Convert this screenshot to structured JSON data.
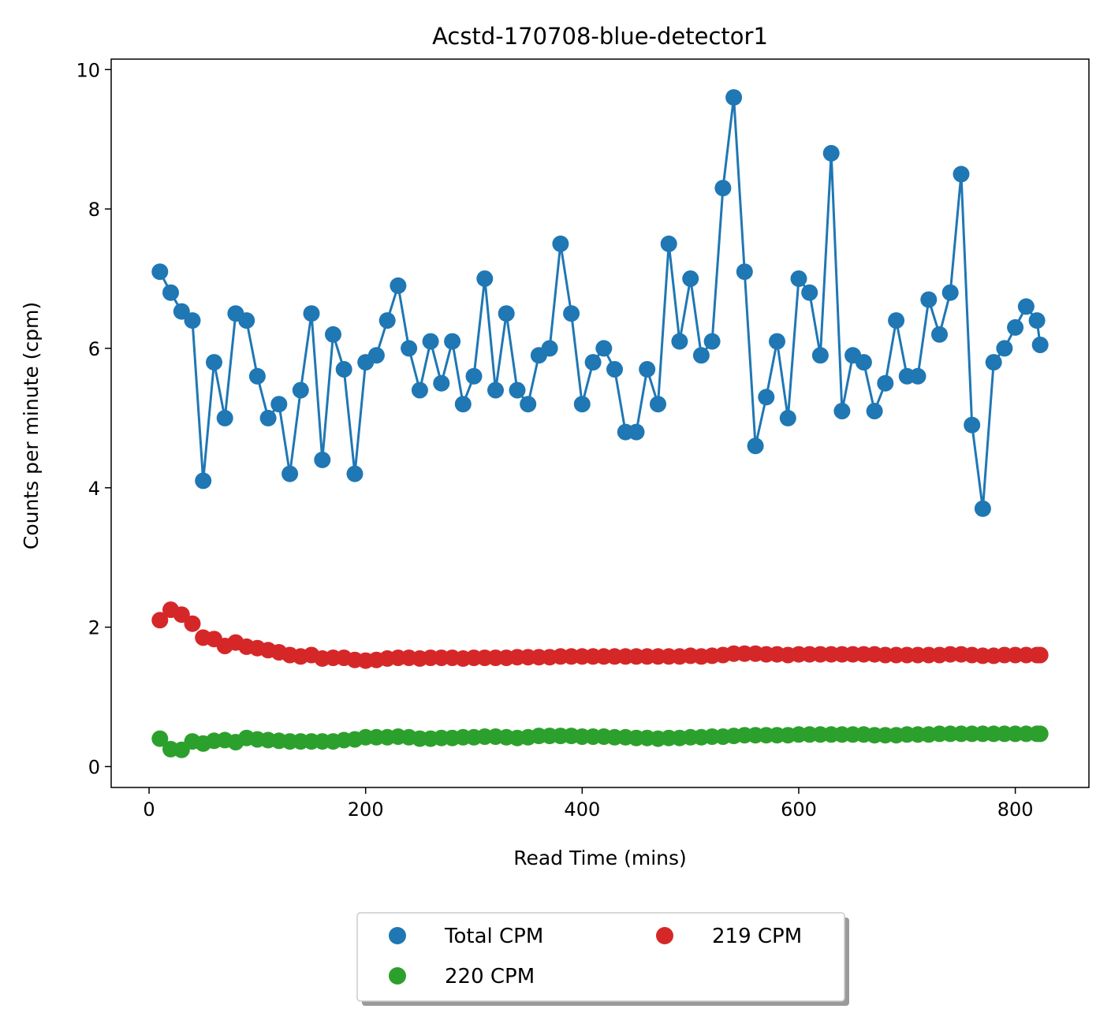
{
  "chart_data": {
    "type": "line",
    "title": "Acstd-170708-blue-detector1",
    "xlabel": "Read Time (mins)",
    "ylabel": "Counts per minute (cpm)",
    "xlim": [
      -35,
      868
    ],
    "ylim": [
      -0.3,
      10.15
    ],
    "xticks": [
      0,
      200,
      400,
      600,
      800
    ],
    "yticks": [
      0,
      2,
      4,
      6,
      8,
      10
    ],
    "grid": false,
    "legend_position": "below-center",
    "legend_columns": 2,
    "x": [
      10,
      20,
      30,
      40,
      50,
      60,
      70,
      80,
      90,
      100,
      110,
      120,
      130,
      140,
      150,
      160,
      170,
      180,
      190,
      200,
      210,
      220,
      230,
      240,
      250,
      260,
      270,
      280,
      290,
      300,
      310,
      320,
      330,
      340,
      350,
      360,
      370,
      380,
      390,
      400,
      410,
      420,
      430,
      440,
      450,
      460,
      470,
      480,
      490,
      500,
      510,
      520,
      530,
      540,
      550,
      560,
      570,
      580,
      590,
      600,
      610,
      620,
      630,
      640,
      650,
      660,
      670,
      680,
      690,
      700,
      710,
      720,
      730,
      740,
      750,
      760,
      770,
      780,
      790,
      800,
      810,
      820,
      823
    ],
    "series": [
      {
        "name": "Total CPM",
        "color": "#1f77b4",
        "line": true,
        "values": [
          7.1,
          6.8,
          6.53,
          6.4,
          4.1,
          5.8,
          5.0,
          6.5,
          6.4,
          5.6,
          5.0,
          5.2,
          4.2,
          5.4,
          6.5,
          4.4,
          6.2,
          5.7,
          4.2,
          5.8,
          5.9,
          6.4,
          6.9,
          6.0,
          5.4,
          6.1,
          5.5,
          6.1,
          5.2,
          5.6,
          7.0,
          5.4,
          6.5,
          5.4,
          5.2,
          5.9,
          6.0,
          7.5,
          6.5,
          5.2,
          5.8,
          6.0,
          5.7,
          4.8,
          4.8,
          5.7,
          5.2,
          7.5,
          6.1,
          7.0,
          5.9,
          6.1,
          8.3,
          9.6,
          7.1,
          4.6,
          5.3,
          6.1,
          5.0,
          7.0,
          6.8,
          5.9,
          8.8,
          5.1,
          5.9,
          5.8,
          5.1,
          5.5,
          6.4,
          5.6,
          5.6,
          6.7,
          6.2,
          6.8,
          8.5,
          4.9,
          3.7,
          5.8,
          6.0,
          6.3,
          6.6,
          6.4,
          6.05
        ]
      },
      {
        "name": "220 CPM",
        "color": "#2ca02c",
        "line": false,
        "values": [
          0.4,
          0.25,
          0.24,
          0.36,
          0.33,
          0.37,
          0.38,
          0.35,
          0.41,
          0.39,
          0.38,
          0.37,
          0.36,
          0.36,
          0.36,
          0.36,
          0.36,
          0.38,
          0.39,
          0.42,
          0.42,
          0.42,
          0.43,
          0.42,
          0.4,
          0.4,
          0.41,
          0.41,
          0.42,
          0.42,
          0.43,
          0.43,
          0.42,
          0.41,
          0.42,
          0.44,
          0.44,
          0.44,
          0.44,
          0.43,
          0.43,
          0.43,
          0.42,
          0.42,
          0.41,
          0.41,
          0.4,
          0.41,
          0.41,
          0.42,
          0.42,
          0.43,
          0.43,
          0.44,
          0.45,
          0.45,
          0.45,
          0.45,
          0.45,
          0.46,
          0.46,
          0.46,
          0.46,
          0.46,
          0.46,
          0.46,
          0.45,
          0.45,
          0.45,
          0.46,
          0.46,
          0.46,
          0.47,
          0.47,
          0.47,
          0.47,
          0.47,
          0.47,
          0.47,
          0.47,
          0.47,
          0.47,
          0.47
        ]
      },
      {
        "name": "219 CPM",
        "color": "#d62728",
        "line": false,
        "values": [
          2.1,
          2.25,
          2.18,
          2.05,
          1.85,
          1.83,
          1.73,
          1.78,
          1.72,
          1.7,
          1.67,
          1.64,
          1.6,
          1.58,
          1.6,
          1.55,
          1.56,
          1.56,
          1.53,
          1.52,
          1.53,
          1.55,
          1.56,
          1.56,
          1.55,
          1.56,
          1.56,
          1.56,
          1.55,
          1.56,
          1.56,
          1.56,
          1.56,
          1.57,
          1.57,
          1.57,
          1.57,
          1.58,
          1.58,
          1.58,
          1.58,
          1.58,
          1.58,
          1.58,
          1.58,
          1.58,
          1.58,
          1.58,
          1.58,
          1.59,
          1.58,
          1.59,
          1.6,
          1.62,
          1.62,
          1.62,
          1.61,
          1.61,
          1.6,
          1.61,
          1.61,
          1.61,
          1.61,
          1.61,
          1.61,
          1.61,
          1.61,
          1.6,
          1.6,
          1.6,
          1.6,
          1.6,
          1.6,
          1.61,
          1.61,
          1.6,
          1.59,
          1.59,
          1.6,
          1.6,
          1.6,
          1.6,
          1.6
        ]
      }
    ],
    "legend_items": [
      {
        "name": "Total CPM",
        "color": "#1f77b4"
      },
      {
        "name": "219 CPM",
        "color": "#d62728"
      },
      {
        "name": "220 CPM",
        "color": "#2ca02c"
      }
    ]
  }
}
